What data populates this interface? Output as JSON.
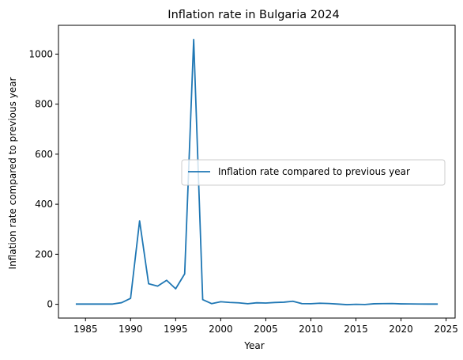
{
  "chart_data": {
    "type": "line",
    "title": "Inflation rate in Bulgaria 2024",
    "xlabel": "Year",
    "ylabel": "Inflation rate compared to previous year",
    "xlim": [
      1982,
      2026
    ],
    "ylim": [
      -55,
      1115
    ],
    "xticks": [
      1985,
      1990,
      1995,
      2000,
      2005,
      2010,
      2015,
      2020,
      2025
    ],
    "yticks": [
      0,
      200,
      400,
      600,
      800,
      1000
    ],
    "legend_position": "center-right",
    "grid": false,
    "series": [
      {
        "name": "Inflation rate compared to previous year",
        "color": "#1f77b4",
        "x": [
          1984,
          1985,
          1986,
          1987,
          1988,
          1989,
          1990,
          1991,
          1992,
          1993,
          1994,
          1995,
          1996,
          1997,
          1998,
          1999,
          2000,
          2001,
          2002,
          2003,
          2004,
          2005,
          2006,
          2007,
          2008,
          2009,
          2010,
          2011,
          2012,
          2013,
          2014,
          2015,
          2016,
          2017,
          2018,
          2019,
          2020,
          2021,
          2022,
          2023,
          2024
        ],
        "y": [
          1.0,
          1.0,
          1.0,
          1.0,
          1.0,
          6.5,
          23.8,
          333.5,
          82.0,
          72.8,
          96.0,
          62.0,
          121.6,
          1058.4,
          18.7,
          2.6,
          10.3,
          7.4,
          5.8,
          2.3,
          6.1,
          5.0,
          7.3,
          8.4,
          12.3,
          2.8,
          2.4,
          4.2,
          3.0,
          0.9,
          -1.4,
          -0.1,
          -0.8,
          2.1,
          2.8,
          3.1,
          1.7,
          1.6,
          1.2,
          1.0,
          1.0
        ]
      }
    ]
  }
}
